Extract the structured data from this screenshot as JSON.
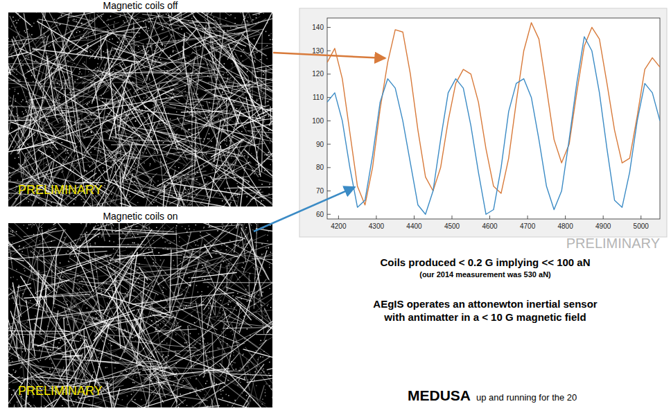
{
  "chart_data": {
    "type": "line",
    "x": [
      4170,
      4190,
      4210,
      4230,
      4250,
      4270,
      4290,
      4310,
      4330,
      4350,
      4370,
      4390,
      4410,
      4430,
      4450,
      4470,
      4490,
      4510,
      4530,
      4550,
      4570,
      4590,
      4610,
      4630,
      4650,
      4670,
      4690,
      4710,
      4730,
      4750,
      4770,
      4790,
      4810,
      4830,
      4850,
      4870,
      4890,
      4910,
      4930,
      4950,
      4970,
      4990,
      5010,
      5030,
      5050
    ],
    "series": [
      {
        "color": "#d87a3a",
        "values": [
          125,
          131,
          118,
          95,
          72,
          64,
          80,
          105,
          125,
          139,
          138,
          120,
          96,
          76,
          70,
          80,
          100,
          116,
          122,
          120,
          108,
          88,
          72,
          69,
          84,
          108,
          130,
          142,
          135,
          114,
          92,
          82,
          90,
          112,
          132,
          140,
          135,
          116,
          96,
          82,
          84,
          102,
          122,
          127,
          123
        ]
      },
      {
        "color": "#3b8bc5",
        "values": [
          108,
          112,
          100,
          80,
          63,
          66,
          85,
          108,
          118,
          114,
          100,
          82,
          64,
          60,
          70,
          92,
          112,
          118,
          114,
          98,
          78,
          60,
          62,
          80,
          104,
          116,
          118,
          110,
          92,
          72,
          62,
          70,
          92,
          116,
          136,
          130,
          112,
          88,
          66,
          63,
          78,
          100,
          116,
          112,
          100
        ]
      }
    ],
    "xlim": [
      4170,
      5050
    ],
    "ylim": [
      58,
      144
    ],
    "xticks": [
      4200,
      4300,
      4400,
      4500,
      4600,
      4700,
      4800,
      4900,
      5000
    ],
    "yticks": [
      60,
      70,
      80,
      90,
      100,
      110,
      120,
      130,
      140
    ],
    "grid": false,
    "annotations": [
      "PRELIMINARY"
    ]
  },
  "images": [
    {
      "title": "Magnetic coils off",
      "watermark": "PRELIMINARY"
    },
    {
      "title": "Magnetic coils on",
      "watermark": "PRELIMINARY"
    }
  ],
  "text": {
    "headline": "Coils produced < 0.2 G implying << 100 aN",
    "note": "(our 2014 measurement was 530 aN)",
    "claim": [
      "AEgIS operates an attonewton inertial sensor",
      "with antimatter in a < 10 G magnetic field"
    ],
    "medusa": "MEDUSA",
    "medusa_rest": "up and running for the 20"
  }
}
